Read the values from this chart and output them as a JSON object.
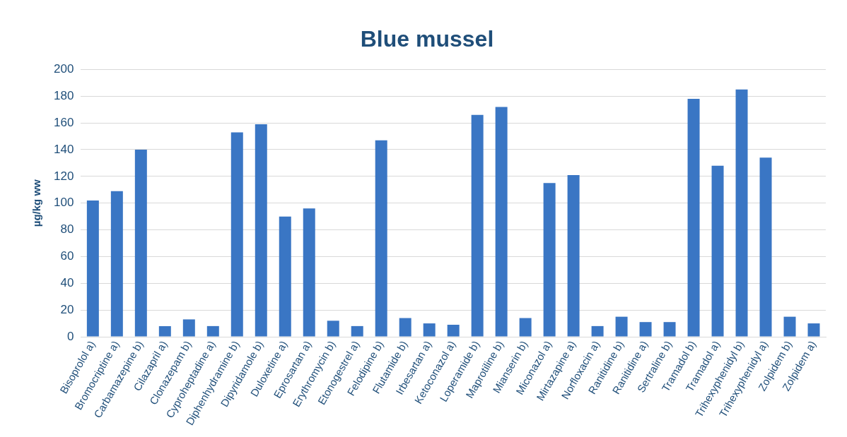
{
  "chart_data": {
    "type": "bar",
    "title": "Blue mussel",
    "ylabel": "µg/kg ww",
    "categories": [
      "Bisoprolol a)",
      "Bromocriptine a)",
      "Carbamazepine b)",
      "Cilazapril a)",
      "Clonazepam b)",
      "Cyproheptadine a)",
      "Diphenhydramine b)",
      "Dipyridamole b)",
      "Duloxetine a)",
      "Eprosartan a)",
      "Erythromycin b)",
      "Etonogestrel a)",
      "Felodipine b)",
      "Flutamide b)",
      "Irbesartan a)",
      "Ketoconazol a)",
      "Loperamide b)",
      "Maprotiline b)",
      "Mianserin b)",
      "Miconazol a)",
      "Mirtazapine a)",
      "Norfloxacin a)",
      "Ranitidine b)",
      "Ranitidine a)",
      "Sertraline b)",
      "Tramadol b)",
      "Tramadol a)",
      "Trihexyphenidyl b)",
      "Trihexyphenidyl a)",
      "Zolpidem b)",
      "Zolpidem a)"
    ],
    "values": [
      102,
      109,
      140,
      8,
      13,
      8,
      153,
      159,
      90,
      96,
      12,
      8,
      147,
      14,
      10,
      9,
      166,
      172,
      14,
      115,
      121,
      8,
      15,
      11,
      11,
      178,
      128,
      185,
      134,
      15,
      10
    ],
    "color": "#3a76c4",
    "ylim": [
      0,
      200
    ],
    "yticks": [
      0,
      20,
      40,
      60,
      80,
      100,
      120,
      140,
      160,
      180,
      200
    ],
    "grid": "y",
    "legend": false
  }
}
